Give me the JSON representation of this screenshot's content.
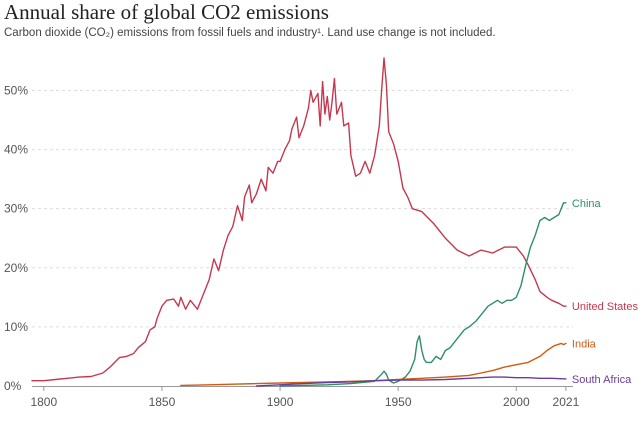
{
  "chart_data": {
    "type": "line",
    "title": "Annual share of global CO2 emissions",
    "subtitle": "Carbon dioxide (CO₂) emissions from fossil fuels and industry¹. Land use change is not included.",
    "xlabel": "",
    "ylabel": "",
    "xlim": [
      1795,
      2024
    ],
    "ylim": [
      0,
      56
    ],
    "grid": true,
    "x_ticks": [
      {
        "value": 1800,
        "label": "1800"
      },
      {
        "value": 1850,
        "label": "1850"
      },
      {
        "value": 1900,
        "label": "1900"
      },
      {
        "value": 1950,
        "label": "1950"
      },
      {
        "value": 2000,
        "label": "2000"
      },
      {
        "value": 2021,
        "label": "2021"
      }
    ],
    "y_ticks": [
      {
        "value": 0,
        "label": "0%"
      },
      {
        "value": 10,
        "label": "10%"
      },
      {
        "value": 20,
        "label": "20%"
      },
      {
        "value": 30,
        "label": "30%"
      },
      {
        "value": 40,
        "label": "40%"
      },
      {
        "value": 50,
        "label": "50%"
      }
    ],
    "series": [
      {
        "name": "United States",
        "label": "United States",
        "color": "#c4394f",
        "points": [
          [
            1795,
            0.9
          ],
          [
            1800,
            0.9
          ],
          [
            1805,
            1.1
          ],
          [
            1810,
            1.3
          ],
          [
            1815,
            1.5
          ],
          [
            1820,
            1.6
          ],
          [
            1825,
            2.2
          ],
          [
            1828,
            3.2
          ],
          [
            1830,
            4.0
          ],
          [
            1832,
            4.8
          ],
          [
            1835,
            5.0
          ],
          [
            1838,
            5.5
          ],
          [
            1840,
            6.5
          ],
          [
            1843,
            7.5
          ],
          [
            1845,
            9.5
          ],
          [
            1847,
            10.0
          ],
          [
            1848,
            11.5
          ],
          [
            1850,
            13.5
          ],
          [
            1852,
            14.5
          ],
          [
            1855,
            14.7
          ],
          [
            1857,
            13.5
          ],
          [
            1858,
            15.0
          ],
          [
            1860,
            13.0
          ],
          [
            1862,
            14.5
          ],
          [
            1865,
            13.0
          ],
          [
            1868,
            16.0
          ],
          [
            1870,
            18.0
          ],
          [
            1872,
            21.5
          ],
          [
            1874,
            19.5
          ],
          [
            1876,
            23.0
          ],
          [
            1878,
            25.5
          ],
          [
            1880,
            27.0
          ],
          [
            1882,
            30.5
          ],
          [
            1884,
            28.0
          ],
          [
            1885,
            32.0
          ],
          [
            1887,
            34.0
          ],
          [
            1888,
            31.0
          ],
          [
            1890,
            32.5
          ],
          [
            1892,
            35.0
          ],
          [
            1894,
            33.0
          ],
          [
            1895,
            37.0
          ],
          [
            1897,
            36.0
          ],
          [
            1899,
            38.0
          ],
          [
            1900,
            38.0
          ],
          [
            1902,
            40.0
          ],
          [
            1904,
            41.5
          ],
          [
            1905,
            43.5
          ],
          [
            1907,
            45.5
          ],
          [
            1908,
            42.0
          ],
          [
            1910,
            44.0
          ],
          [
            1912,
            47.0
          ],
          [
            1913,
            50.0
          ],
          [
            1914,
            48.0
          ],
          [
            1916,
            49.5
          ],
          [
            1917,
            44.0
          ],
          [
            1918,
            51.5
          ],
          [
            1919,
            46.0
          ],
          [
            1920,
            49.0
          ],
          [
            1921,
            45.0
          ],
          [
            1922,
            48.0
          ],
          [
            1923,
            52.0
          ],
          [
            1924,
            46.0
          ],
          [
            1926,
            48.0
          ],
          [
            1927,
            44.0
          ],
          [
            1929,
            44.5
          ],
          [
            1930,
            39.0
          ],
          [
            1932,
            35.5
          ],
          [
            1934,
            36.0
          ],
          [
            1936,
            38.0
          ],
          [
            1938,
            36.0
          ],
          [
            1940,
            39.0
          ],
          [
            1942,
            44.0
          ],
          [
            1943,
            50.0
          ],
          [
            1944,
            55.5
          ],
          [
            1945,
            51.0
          ],
          [
            1946,
            43.0
          ],
          [
            1948,
            41.0
          ],
          [
            1950,
            38.0
          ],
          [
            1952,
            33.5
          ],
          [
            1954,
            32.0
          ],
          [
            1956,
            30.0
          ],
          [
            1960,
            29.5
          ],
          [
            1965,
            27.5
          ],
          [
            1970,
            25.0
          ],
          [
            1975,
            23.0
          ],
          [
            1980,
            22.0
          ],
          [
            1985,
            23.0
          ],
          [
            1990,
            22.5
          ],
          [
            1995,
            23.5
          ],
          [
            2000,
            23.5
          ],
          [
            2003,
            22.0
          ],
          [
            2005,
            20.5
          ],
          [
            2008,
            18.0
          ],
          [
            2010,
            16.0
          ],
          [
            2013,
            15.0
          ],
          [
            2015,
            14.5
          ],
          [
            2018,
            14.0
          ],
          [
            2020,
            13.5
          ],
          [
            2021,
            13.5
          ]
        ]
      },
      {
        "name": "China",
        "label": "China",
        "color": "#2e8f67",
        "points": [
          [
            1900,
            0.0
          ],
          [
            1920,
            0.2
          ],
          [
            1930,
            0.4
          ],
          [
            1940,
            0.8
          ],
          [
            1943,
            2.0
          ],
          [
            1944,
            2.5
          ],
          [
            1945,
            2.0
          ],
          [
            1946,
            1.0
          ],
          [
            1948,
            0.5
          ],
          [
            1950,
            0.8
          ],
          [
            1953,
            1.5
          ],
          [
            1955,
            2.5
          ],
          [
            1957,
            4.5
          ],
          [
            1958,
            7.5
          ],
          [
            1959,
            8.5
          ],
          [
            1960,
            6.0
          ],
          [
            1961,
            4.5
          ],
          [
            1962,
            4.0
          ],
          [
            1964,
            4.0
          ],
          [
            1966,
            5.0
          ],
          [
            1968,
            4.5
          ],
          [
            1970,
            6.0
          ],
          [
            1972,
            6.5
          ],
          [
            1975,
            8.0
          ],
          [
            1978,
            9.5
          ],
          [
            1980,
            10.0
          ],
          [
            1983,
            11.0
          ],
          [
            1985,
            12.0
          ],
          [
            1988,
            13.5
          ],
          [
            1990,
            14.0
          ],
          [
            1992,
            14.5
          ],
          [
            1994,
            14.0
          ],
          [
            1996,
            14.5
          ],
          [
            1998,
            14.5
          ],
          [
            2000,
            15.0
          ],
          [
            2002,
            17.0
          ],
          [
            2004,
            20.5
          ],
          [
            2006,
            23.5
          ],
          [
            2008,
            25.5
          ],
          [
            2010,
            28.0
          ],
          [
            2012,
            28.5
          ],
          [
            2014,
            28.0
          ],
          [
            2016,
            28.5
          ],
          [
            2018,
            29.0
          ],
          [
            2020,
            31.0
          ],
          [
            2021,
            31.0
          ]
        ]
      },
      {
        "name": "India",
        "label": "India",
        "color": "#d25a12",
        "points": [
          [
            1858,
            0.1
          ],
          [
            1870,
            0.2
          ],
          [
            1880,
            0.3
          ],
          [
            1890,
            0.4
          ],
          [
            1900,
            0.5
          ],
          [
            1910,
            0.6
          ],
          [
            1920,
            0.7
          ],
          [
            1930,
            0.8
          ],
          [
            1940,
            0.9
          ],
          [
            1950,
            1.1
          ],
          [
            1960,
            1.3
          ],
          [
            1970,
            1.5
          ],
          [
            1980,
            1.8
          ],
          [
            1985,
            2.2
          ],
          [
            1990,
            2.6
          ],
          [
            1995,
            3.2
          ],
          [
            2000,
            3.6
          ],
          [
            2005,
            4.0
          ],
          [
            2008,
            4.6
          ],
          [
            2010,
            5.0
          ],
          [
            2013,
            6.0
          ],
          [
            2016,
            6.8
          ],
          [
            2019,
            7.2
          ],
          [
            2020,
            7.0
          ],
          [
            2021,
            7.2
          ]
        ]
      },
      {
        "name": "South Africa",
        "label": "South Africa",
        "color": "#6a3d9a",
        "points": [
          [
            1890,
            0.0
          ],
          [
            1900,
            0.2
          ],
          [
            1910,
            0.4
          ],
          [
            1920,
            0.6
          ],
          [
            1930,
            0.7
          ],
          [
            1940,
            0.9
          ],
          [
            1950,
            1.0
          ],
          [
            1960,
            1.0
          ],
          [
            1970,
            1.1
          ],
          [
            1980,
            1.3
          ],
          [
            1985,
            1.4
          ],
          [
            1990,
            1.5
          ],
          [
            1995,
            1.5
          ],
          [
            2000,
            1.4
          ],
          [
            2005,
            1.4
          ],
          [
            2010,
            1.3
          ],
          [
            2015,
            1.3
          ],
          [
            2021,
            1.2
          ]
        ]
      }
    ]
  }
}
